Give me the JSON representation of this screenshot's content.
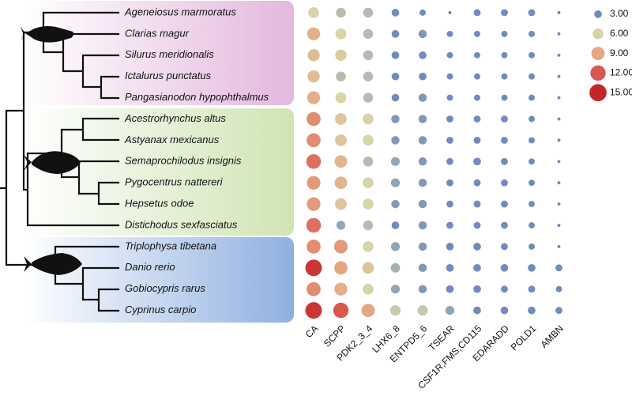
{
  "chart_data": {
    "type": "bubble",
    "y_categories": [
      "Ageneiosus marmoratus",
      "Clarias magur",
      "Silurus meridionalis",
      "Ictalurus punctatus",
      "Pangasianodon hypophthalmus",
      "Acestrorhynchus altus",
      "Astyanax mexicanus",
      "Semaprochilodus insignis",
      "Pygocentrus nattereri",
      "Hepsetus odoe",
      "Distichodus sexfasciatus",
      "Triplophysa tibetana",
      "Danio rerio",
      "Gobiocypris rarus",
      "Cyprinus carpio"
    ],
    "x_categories": [
      "CA",
      "SCPP",
      "PDK2_3_4",
      "LHX6_8",
      "ENTPD5_6",
      "TSEAR",
      "CSF1R,FMS,CD115",
      "EDARADD",
      "POLD1",
      "AMBN"
    ],
    "values": [
      [
        6,
        5,
        5,
        3,
        2,
        0.5,
        2.5,
        2.5,
        2.5,
        0.5
      ],
      [
        8.5,
        6,
        5,
        3,
        3.5,
        2,
        2,
        2,
        2,
        0.5
      ],
      [
        7.5,
        6.5,
        5,
        3,
        3,
        2,
        2,
        2,
        2,
        0.5
      ],
      [
        7.5,
        5,
        5,
        3,
        3,
        2,
        2,
        2,
        2,
        0.5
      ],
      [
        8.5,
        6,
        5,
        3,
        3.5,
        2,
        2,
        2,
        2,
        0.5
      ],
      [
        10,
        7,
        6,
        3.5,
        3.5,
        2.5,
        2.5,
        2.5,
        2,
        0.5
      ],
      [
        10,
        7,
        6,
        3.5,
        3.5,
        2.5,
        2.5,
        2.5,
        2,
        0.5
      ],
      [
        11,
        8,
        5,
        4,
        3.5,
        2.5,
        3,
        2.5,
        2,
        0.5
      ],
      [
        9.5,
        8,
        6,
        4,
        3.5,
        2.5,
        2.5,
        2.5,
        2,
        0.5
      ],
      [
        9.5,
        7,
        6,
        3.5,
        3.5,
        2.5,
        2.5,
        2.5,
        2,
        0.5
      ],
      [
        11,
        4,
        5,
        3,
        3.5,
        2.5,
        2.5,
        2.5,
        2,
        0.5
      ],
      [
        10,
        9.5,
        6,
        4,
        3.5,
        3,
        3,
        2.5,
        2,
        0.5
      ],
      [
        14,
        9,
        7,
        4.5,
        3.5,
        3,
        3,
        3,
        3,
        2.5
      ],
      [
        10,
        8.5,
        6,
        4,
        3.5,
        3,
        3,
        2.5,
        2.5,
        2
      ],
      [
        14,
        12,
        9,
        5.5,
        5.5,
        4,
        3,
        3,
        3,
        2.5
      ]
    ],
    "legend_ticks": [
      {
        "value": 3,
        "label": "3.00"
      },
      {
        "value": 6,
        "label": "6.00"
      },
      {
        "value": 9,
        "label": "9.00"
      },
      {
        "value": 12,
        "label": "12.00"
      },
      {
        "value": 15,
        "label": "15.00"
      }
    ],
    "legend_colors": [
      "#6f8cc0",
      "#d8d4a8",
      "#e6a680",
      "#d9574f",
      "#c2262a"
    ]
  }
}
